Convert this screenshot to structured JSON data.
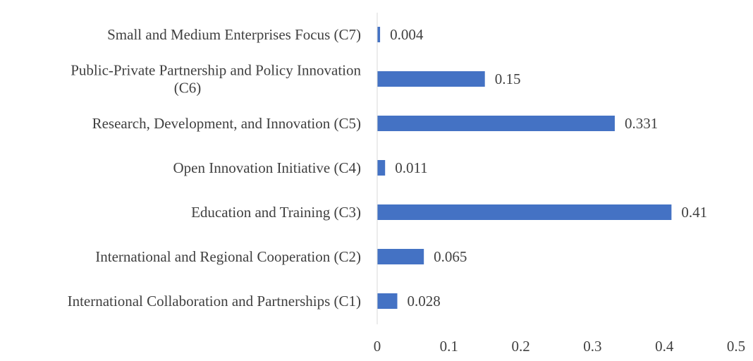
{
  "chart_data": {
    "type": "bar",
    "orientation": "horizontal",
    "categories": [
      [
        "Small and Medium Enterprises Focus (C7)"
      ],
      [
        "Public-Private Partnership and Policy Innovation",
        "(C6)"
      ],
      [
        "Research, Development, and Innovation (C5)"
      ],
      [
        "Open Innovation Initiative (C4)"
      ],
      [
        "Education and Training (C3)"
      ],
      [
        "International and Regional Cooperation (C2)"
      ],
      [
        "International Collaboration and Partnerships (C1)"
      ]
    ],
    "values": [
      0.004,
      0.15,
      0.331,
      0.011,
      0.41,
      0.065,
      0.028
    ],
    "value_labels": [
      "0.004",
      "0.15",
      "0.331",
      "0.011",
      "0.41",
      "0.065",
      "0.028"
    ],
    "xlim": [
      0,
      0.5
    ],
    "x_ticks": [
      "0",
      "0.1",
      "0.2",
      "0.3",
      "0.4",
      "0.5"
    ],
    "bar_color": "#4472c4",
    "text_color": "#404040",
    "axis_color": "#d9d9d9",
    "grid": false,
    "legend": "none",
    "title": "",
    "xlabel": "",
    "ylabel": ""
  }
}
